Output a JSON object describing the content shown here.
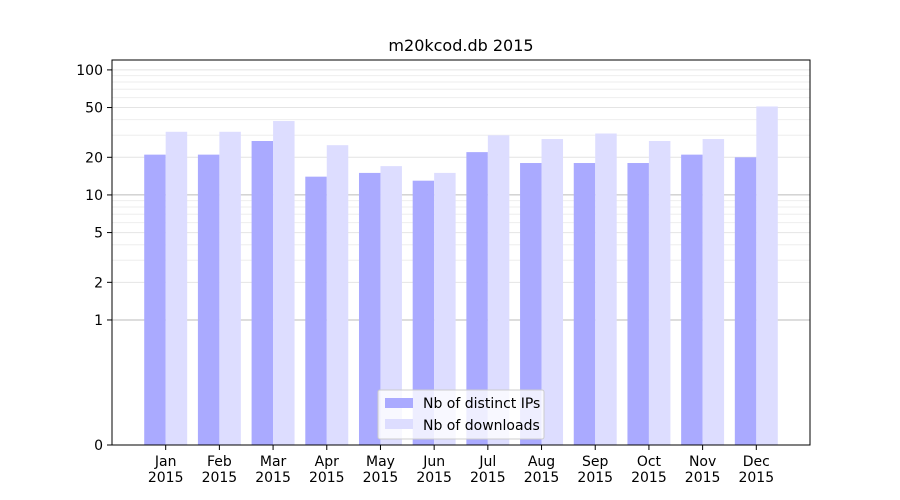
{
  "chart_data": {
    "type": "bar",
    "title": "m20kcod.db 2015",
    "xlabel": "",
    "ylabel": "",
    "yscale": "symlog",
    "yticks": [
      0,
      1,
      2,
      5,
      10,
      20,
      50,
      100
    ],
    "ylim": [
      0,
      120
    ],
    "categories": [
      [
        "Jan",
        "2015"
      ],
      [
        "Feb",
        "2015"
      ],
      [
        "Mar",
        "2015"
      ],
      [
        "Apr",
        "2015"
      ],
      [
        "May",
        "2015"
      ],
      [
        "Jun",
        "2015"
      ],
      [
        "Jul",
        "2015"
      ],
      [
        "Aug",
        "2015"
      ],
      [
        "Sep",
        "2015"
      ],
      [
        "Oct",
        "2015"
      ],
      [
        "Nov",
        "2015"
      ],
      [
        "Dec",
        "2015"
      ]
    ],
    "series": [
      {
        "name": "Nb of distinct IPs",
        "color": "#aaaaff",
        "values": [
          21,
          21,
          27,
          14,
          15,
          13,
          22,
          18,
          18,
          18,
          21,
          20
        ]
      },
      {
        "name": "Nb of downloads",
        "color": "#ddddff",
        "values": [
          32,
          32,
          39,
          25,
          17,
          15,
          30,
          28,
          31,
          27,
          28,
          51
        ]
      }
    ],
    "legend": {
      "position": "bottom-center"
    },
    "grid": true
  }
}
